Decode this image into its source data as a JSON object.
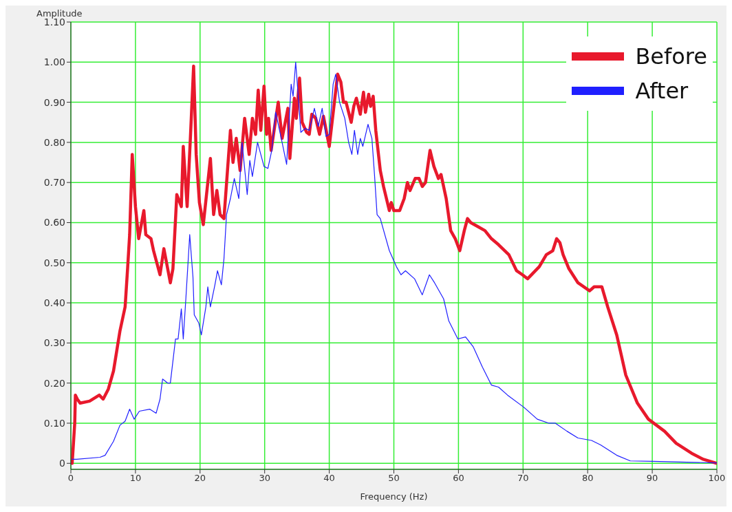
{
  "chart_data": {
    "type": "line",
    "xlabel": "Frequency (Hz)",
    "ylabel": "Amplitude",
    "xlim": [
      0,
      100
    ],
    "xticks": [
      0,
      10,
      20,
      30,
      40,
      50,
      60,
      70,
      80,
      90,
      100
    ],
    "ylim": [
      -0.015,
      1.1
    ],
    "yticks": [
      0,
      {
        "value": 0.1,
        "label": "0.10"
      },
      {
        "value": 0.2,
        "label": "0.20"
      },
      {
        "value": 0.3,
        "label": "0.30"
      },
      {
        "value": 0.4,
        "label": "0.40"
      },
      {
        "value": 0.5,
        "label": "0.50"
      },
      {
        "value": 0.6,
        "label": "0.60"
      },
      {
        "value": 0.7,
        "label": "0.70"
      },
      {
        "value": 0.8,
        "label": "0.80"
      },
      {
        "value": 0.9,
        "label": "0.90"
      },
      {
        "value": 1.0,
        "label": "1.00"
      },
      {
        "value": 1.1,
        "label": "1.10"
      }
    ],
    "grid": true,
    "legend": "top right",
    "marker": "none",
    "line_style": "solid",
    "series": [
      {
        "name": "Before",
        "color": "#e8192c",
        "x": [
          0.2,
          0.6,
          0.7,
          1.0,
          1.45,
          2.9,
          4.4,
          5.0,
          5.8,
          6.6,
          7.2,
          7.6,
          8.4,
          8.8,
          9.1,
          9.5,
          10.0,
          10.5,
          11.3,
          11.6,
          12.4,
          12.8,
          13.8,
          14.4,
          15.4,
          15.8,
          16.4,
          17.1,
          17.4,
          18.0,
          18.5,
          19.0,
          19.4,
          19.9,
          20.5,
          21.6,
          22.1,
          22.6,
          23.1,
          23.7,
          24.7,
          25.1,
          25.6,
          26.2,
          26.9,
          27.6,
          28.1,
          28.6,
          29.0,
          29.4,
          29.9,
          30.3,
          30.6,
          31.0,
          32.1,
          32.7,
          33.6,
          33.9,
          34.6,
          34.9,
          35.4,
          35.8,
          36.5,
          36.9,
          37.3,
          37.9,
          38.5,
          39.1,
          40.0,
          41.3,
          41.8,
          42.2,
          42.6,
          43.4,
          43.8,
          44.2,
          44.8,
          45.3,
          45.6,
          46.1,
          46.4,
          46.8,
          47.2,
          47.9,
          48.4,
          49.3,
          49.6,
          50.0,
          50.9,
          51.6,
          52.1,
          52.5,
          53.3,
          53.9,
          54.4,
          54.9,
          55.6,
          56.2,
          56.9,
          57.3,
          58.1,
          58.8,
          59.5,
          60.2,
          60.9,
          61.4,
          61.9,
          63.0,
          64.1,
          65.1,
          66.2,
          67.8,
          69.0,
          69.9,
          70.7,
          72.5,
          73.6,
          74.6,
          75.2,
          75.7,
          76.2,
          77.1,
          78.5,
          80.3,
          81.0,
          82.2,
          83.1,
          84.5,
          85.2,
          85.9,
          87.7,
          89.4,
          91.9,
          93.7,
          96.1,
          97.9,
          100
        ],
        "values": [
          0,
          0.1,
          0.17,
          0.16,
          0.15,
          0.155,
          0.17,
          0.16,
          0.185,
          0.23,
          0.29,
          0.33,
          0.39,
          0.49,
          0.57,
          0.77,
          0.64,
          0.56,
          0.63,
          0.57,
          0.56,
          0.53,
          0.47,
          0.535,
          0.45,
          0.485,
          0.67,
          0.64,
          0.79,
          0.64,
          0.81,
          0.99,
          0.77,
          0.65,
          0.595,
          0.76,
          0.62,
          0.68,
          0.62,
          0.61,
          0.83,
          0.75,
          0.81,
          0.73,
          0.86,
          0.77,
          0.86,
          0.82,
          0.93,
          0.83,
          0.94,
          0.82,
          0.86,
          0.78,
          0.9,
          0.81,
          0.885,
          0.76,
          0.91,
          0.86,
          0.96,
          0.85,
          0.825,
          0.82,
          0.87,
          0.86,
          0.82,
          0.865,
          0.79,
          0.97,
          0.95,
          0.9,
          0.9,
          0.85,
          0.89,
          0.91,
          0.87,
          0.925,
          0.875,
          0.92,
          0.89,
          0.915,
          0.83,
          0.73,
          0.69,
          0.63,
          0.65,
          0.63,
          0.63,
          0.66,
          0.7,
          0.68,
          0.71,
          0.71,
          0.69,
          0.7,
          0.78,
          0.74,
          0.71,
          0.72,
          0.66,
          0.58,
          0.56,
          0.53,
          0.58,
          0.61,
          0.6,
          0.59,
          0.58,
          0.56,
          0.545,
          0.52,
          0.48,
          0.47,
          0.46,
          0.49,
          0.52,
          0.53,
          0.56,
          0.55,
          0.52,
          0.485,
          0.45,
          0.43,
          0.44,
          0.44,
          0.39,
          0.32,
          0.27,
          0.22,
          0.15,
          0.11,
          0.08,
          0.05,
          0.025,
          0.01,
          0
        ]
      },
      {
        "name": "After",
        "color": "#1f1fff",
        "x": [
          0.2,
          0.9,
          4.5,
          5.3,
          6.6,
          7.6,
          8.4,
          9.1,
          9.8,
          10.6,
          12.2,
          13.2,
          13.8,
          14.2,
          15.0,
          15.4,
          16.2,
          16.6,
          17.1,
          17.4,
          17.8,
          18.4,
          18.9,
          19.1,
          19.8,
          20.2,
          20.9,
          21.2,
          21.6,
          22.3,
          22.7,
          23.3,
          23.7,
          24.1,
          24.7,
          25.3,
          26.0,
          26.5,
          27.3,
          27.7,
          28.1,
          28.9,
          29.9,
          30.5,
          31.1,
          31.7,
          32.7,
          33.4,
          34.1,
          34.4,
          34.8,
          35.2,
          35.6,
          36.3,
          36.9,
          37.7,
          38.3,
          38.9,
          39.5,
          40.0,
          40.6,
          41.0,
          41.6,
          42.4,
          43.0,
          43.5,
          43.9,
          44.4,
          44.8,
          45.2,
          46.0,
          46.6,
          47.0,
          47.4,
          47.9,
          49.3,
          50.4,
          51.1,
          51.8,
          53.2,
          54.4,
          55.5,
          56.3,
          57.7,
          58.5,
          59.9,
          61.1,
          62.3,
          63.7,
          65.1,
          66.2,
          67.6,
          70.1,
          72.2,
          74.0,
          75.0,
          76.8,
          78.5,
          80.6,
          82.0,
          84.5,
          86.6,
          90.1,
          100
        ],
        "values": [
          0.01,
          0.01,
          0.015,
          0.02,
          0.055,
          0.095,
          0.105,
          0.135,
          0.11,
          0.13,
          0.135,
          0.125,
          0.16,
          0.21,
          0.2,
          0.2,
          0.31,
          0.31,
          0.385,
          0.31,
          0.41,
          0.57,
          0.465,
          0.37,
          0.35,
          0.32,
          0.39,
          0.44,
          0.39,
          0.445,
          0.48,
          0.445,
          0.51,
          0.62,
          0.66,
          0.71,
          0.66,
          0.8,
          0.67,
          0.755,
          0.715,
          0.8,
          0.74,
          0.735,
          0.78,
          0.875,
          0.8,
          0.745,
          0.945,
          0.915,
          1.0,
          0.915,
          0.825,
          0.835,
          0.83,
          0.885,
          0.84,
          0.885,
          0.815,
          0.82,
          0.945,
          0.97,
          0.9,
          0.86,
          0.8,
          0.77,
          0.83,
          0.77,
          0.81,
          0.79,
          0.845,
          0.81,
          0.72,
          0.62,
          0.61,
          0.53,
          0.49,
          0.47,
          0.48,
          0.46,
          0.42,
          0.47,
          0.45,
          0.41,
          0.355,
          0.31,
          0.315,
          0.29,
          0.24,
          0.195,
          0.19,
          0.17,
          0.14,
          0.11,
          0.1,
          0.1,
          0.08,
          0.063,
          0.057,
          0.046,
          0.02,
          0.006,
          0.005,
          0.001
        ]
      }
    ]
  }
}
